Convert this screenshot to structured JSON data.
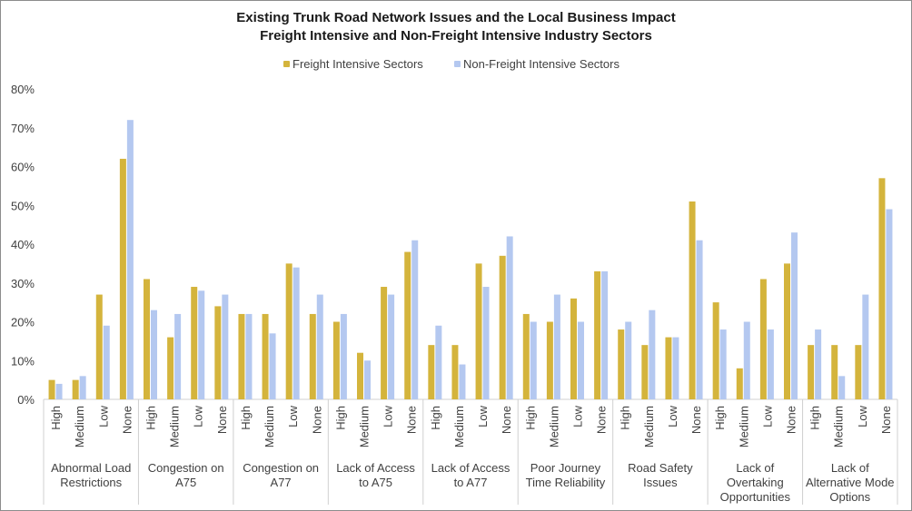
{
  "chart_data": {
    "type": "bar",
    "title": "Existing Trunk Road Network Issues and the Local Business Impact",
    "subtitle": "Freight Intensive and Non-Freight Intensive Industry Sectors",
    "ylim": [
      0,
      80
    ],
    "yticks": [
      0,
      10,
      20,
      30,
      40,
      50,
      60,
      70,
      80
    ],
    "ytick_labels": [
      "0%",
      "10%",
      "20%",
      "30%",
      "40%",
      "50%",
      "60%",
      "70%",
      "80%"
    ],
    "legend_position": "top-center",
    "grid": false,
    "levels": [
      "High",
      "Medium",
      "Low",
      "None"
    ],
    "groups": [
      {
        "label": "Abnormal Load Restrictions",
        "lines": [
          "Abnormal Load",
          "Restrictions"
        ]
      },
      {
        "label": "Congestion on A75",
        "lines": [
          "Congestion on",
          "A75"
        ]
      },
      {
        "label": "Congestion on A77",
        "lines": [
          "Congestion on",
          "A77"
        ]
      },
      {
        "label": "Lack of Access to A75",
        "lines": [
          "Lack of Access",
          "to A75"
        ]
      },
      {
        "label": "Lack of Access to A77",
        "lines": [
          "Lack of Access",
          "to A77"
        ]
      },
      {
        "label": "Poor Journey Time Reliability",
        "lines": [
          "Poor Journey",
          "Time Reliability"
        ]
      },
      {
        "label": "Road Safety Issues",
        "lines": [
          "Road Safety",
          "Issues"
        ]
      },
      {
        "label": "Lack of Overtaking Opportunities",
        "lines": [
          "Lack of",
          "Overtaking",
          "Opportunities"
        ]
      },
      {
        "label": "Lack of Alternative Mode Options",
        "lines": [
          "Lack of",
          "Alternative Mode",
          "Options"
        ]
      }
    ],
    "series": [
      {
        "name": "Freight Intensive Sectors",
        "color": "#d4b43c",
        "values": [
          5,
          5,
          27,
          62,
          31,
          16,
          29,
          24,
          22,
          22,
          35,
          22,
          20,
          12,
          29,
          38,
          14,
          14,
          35,
          37,
          22,
          20,
          26,
          33,
          18,
          14,
          16,
          51,
          25,
          8,
          31,
          35,
          14,
          14,
          14,
          57
        ]
      },
      {
        "name": "Non-Freight Intensive Sectors",
        "color": "#b4c8f0",
        "values": [
          4,
          6,
          19,
          72,
          23,
          22,
          28,
          27,
          22,
          17,
          34,
          27,
          22,
          10,
          27,
          41,
          19,
          9,
          29,
          42,
          20,
          27,
          20,
          33,
          20,
          23,
          16,
          41,
          18,
          20,
          18,
          43,
          18,
          6,
          27,
          49
        ]
      }
    ]
  }
}
